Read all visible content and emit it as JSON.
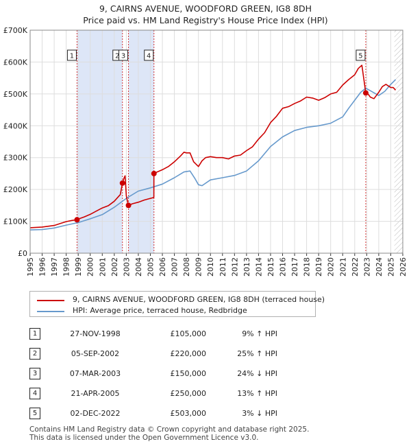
{
  "title_line1": "9, CAIRNS AVENUE, WOODFORD GREEN, IG8 8DH",
  "title_line2": "Price paid vs. HM Land Registry's House Price Index (HPI)",
  "chart_data": {
    "type": "line",
    "title": "9, CAIRNS AVENUE, WOODFORD GREEN, IG8 8DH — Price paid vs. HM Land Registry's House Price Index (HPI)",
    "xlabel": "",
    "ylabel": "",
    "xlim": [
      1995,
      2026
    ],
    "ylim": [
      0,
      700000
    ],
    "x_ticks": [
      1995,
      1996,
      1997,
      1998,
      1999,
      2000,
      2001,
      2002,
      2003,
      2004,
      2005,
      2006,
      2007,
      2008,
      2009,
      2010,
      2011,
      2012,
      2013,
      2014,
      2015,
      2016,
      2017,
      2018,
      2019,
      2020,
      2021,
      2022,
      2023,
      2024,
      2025,
      2026
    ],
    "y_ticks": [
      0,
      100000,
      200000,
      300000,
      400000,
      500000,
      600000,
      700000
    ],
    "y_tick_labels": [
      "£0",
      "£100K",
      "£200K",
      "£300K",
      "£400K",
      "£500K",
      "£600K",
      "£700K"
    ],
    "grid": true,
    "colors": {
      "property": "#cc0000",
      "hpi": "#6699cc",
      "shade": "#dde6f7",
      "marker_line": "#cc0000",
      "hatch": "#bbbbbb"
    },
    "shaded_spans": [
      [
        1998.9,
        2002.68
      ],
      [
        2003.18,
        2005.3
      ]
    ],
    "future_hatch_from": 2025.3,
    "series": [
      {
        "name": "9, CAIRNS AVENUE, WOODFORD GREEN, IG8 8DH (terraced house)",
        "x": [
          1995,
          1996,
          1997,
          1997.5,
          1998,
          1998.5,
          1998.9,
          1999,
          1999.5,
          2000,
          2000.5,
          2001,
          2001.5,
          2002,
          2002.5,
          2002.68,
          2002.8,
          2002.9,
          2003.0,
          2003.18,
          2003.5,
          2004,
          2004.5,
          2005,
          2005.29,
          2005.3,
          2005.5,
          2006,
          2006.5,
          2007,
          2007.5,
          2007.8,
          2008,
          2008.3,
          2008.6,
          2009,
          2009.3,
          2009.6,
          2010,
          2010.5,
          2011,
          2011.5,
          2012,
          2012.5,
          2013,
          2013.5,
          2014,
          2014.5,
          2015,
          2015.5,
          2016,
          2016.5,
          2017,
          2017.5,
          2018,
          2018.5,
          2019,
          2019.5,
          2020,
          2020.5,
          2021,
          2021.5,
          2022,
          2022.3,
          2022.6,
          2022.92,
          2023,
          2023.3,
          2023.6,
          2024,
          2024.3,
          2024.6,
          2025,
          2025.2,
          2025.4
        ],
        "values": [
          80000,
          82000,
          87000,
          93000,
          99000,
          103000,
          105000,
          107000,
          114000,
          122000,
          132000,
          142000,
          149000,
          163000,
          184000,
          220000,
          235000,
          243000,
          180000,
          150000,
          155000,
          160000,
          167000,
          172000,
          175000,
          250000,
          254000,
          262000,
          272000,
          287000,
          305000,
          317000,
          315000,
          315000,
          287000,
          272000,
          290000,
          300000,
          303000,
          300000,
          300000,
          296000,
          305000,
          308000,
          322000,
          334000,
          358000,
          378000,
          410000,
          430000,
          455000,
          460000,
          470000,
          478000,
          490000,
          487000,
          480000,
          488000,
          500000,
          505000,
          528000,
          545000,
          560000,
          580000,
          590000,
          503000,
          505000,
          490000,
          485000,
          505000,
          523000,
          530000,
          520000,
          520000,
          512000
        ]
      },
      {
        "name": "HPI: Average price, terraced house, Redbridge",
        "x": [
          1995,
          1996,
          1997,
          1998,
          1999,
          2000,
          2001,
          2002,
          2003,
          2004,
          2005,
          2006,
          2007,
          2007.8,
          2008.3,
          2008.7,
          2009,
          2009.3,
          2010,
          2011,
          2012,
          2013,
          2014,
          2015,
          2016,
          2017,
          2018,
          2019,
          2020,
          2021,
          2021.5,
          2022,
          2022.5,
          2022.92,
          2023.3,
          2024,
          2024.5,
          2025,
          2025.4
        ],
        "values": [
          73000,
          74000,
          79000,
          88000,
          96000,
          108000,
          121000,
          144000,
          172000,
          195000,
          205000,
          217000,
          237000,
          255000,
          258000,
          235000,
          215000,
          212000,
          230000,
          237000,
          244000,
          258000,
          290000,
          335000,
          365000,
          385000,
          395000,
          400000,
          408000,
          428000,
          455000,
          480000,
          505000,
          518000,
          510000,
          495000,
          508000,
          530000,
          545000
        ]
      }
    ],
    "markers": [
      {
        "label": "1",
        "x": 1998.9,
        "y": 105000
      },
      {
        "label": "2",
        "x": 2002.68,
        "y": 220000
      },
      {
        "label": "3",
        "x": 2003.18,
        "y": 150000
      },
      {
        "label": "4",
        "x": 2005.3,
        "y": 250000
      },
      {
        "label": "5",
        "x": 2022.92,
        "y": 503000
      }
    ]
  },
  "legend": {
    "property_label": "9, CAIRNS AVENUE, WOODFORD GREEN, IG8 8DH (terraced house)",
    "hpi_label": "HPI: Average price, terraced house, Redbridge"
  },
  "sales": [
    {
      "num": "1",
      "date": "27-NOV-1998",
      "price": "£105,000",
      "hpi": "9% ↑ HPI"
    },
    {
      "num": "2",
      "date": "05-SEP-2002",
      "price": "£220,000",
      "hpi": "25% ↑ HPI"
    },
    {
      "num": "3",
      "date": "07-MAR-2003",
      "price": "£150,000",
      "hpi": "24% ↓ HPI"
    },
    {
      "num": "4",
      "date": "21-APR-2005",
      "price": "£250,000",
      "hpi": "13% ↑ HPI"
    },
    {
      "num": "5",
      "date": "02-DEC-2022",
      "price": "£503,000",
      "hpi": "3% ↓ HPI"
    }
  ],
  "footer_line1": "Contains HM Land Registry data © Crown copyright and database right 2025.",
  "footer_line2": "This data is licensed under the Open Government Licence v3.0."
}
